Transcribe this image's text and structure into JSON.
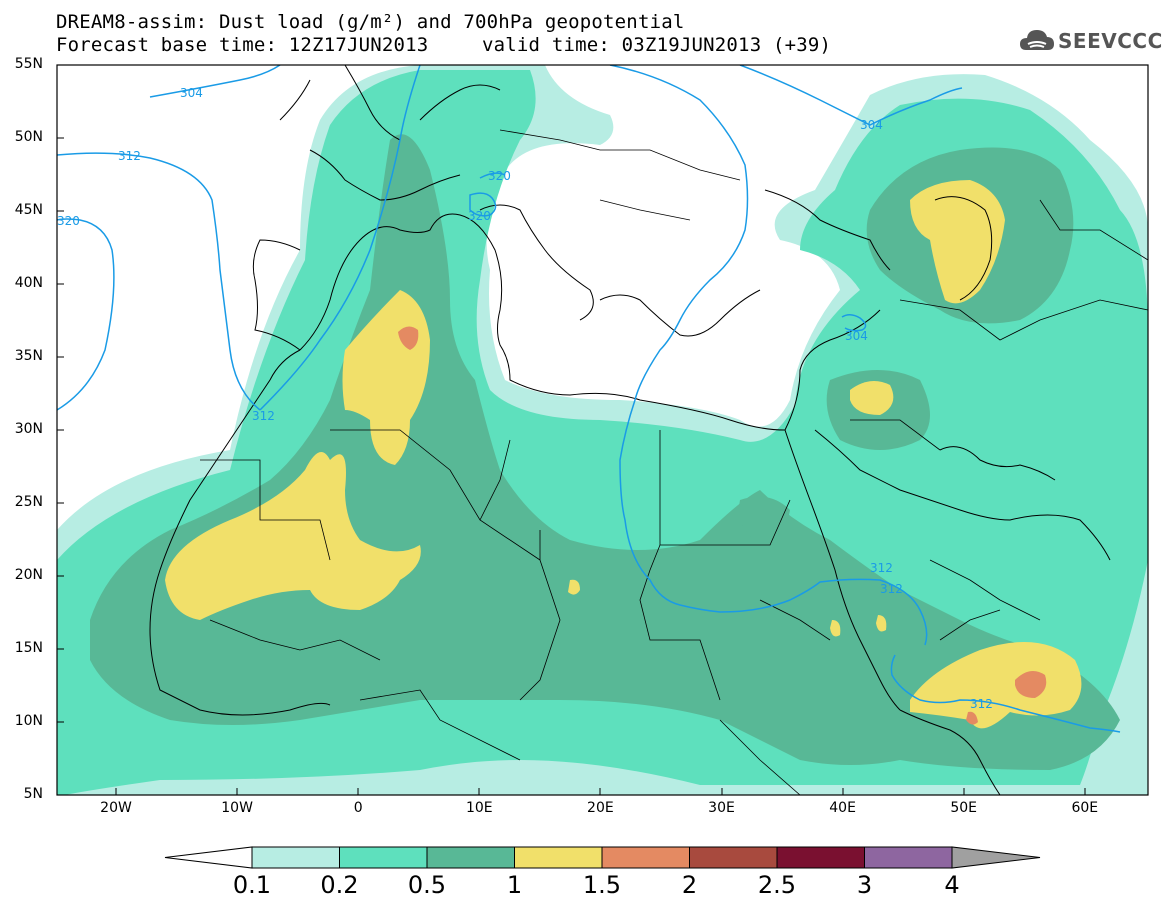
{
  "header": {
    "line1": "DREAM8-assim: Dust load (g/m²) and 700hPa geopotential",
    "line2": "Forecast base time: 12Z17JUN2013",
    "line3": "valid time: 03Z19JUN2013 (+39)"
  },
  "logo": {
    "text": "SEEVCCC",
    "icon": "cloud-icon"
  },
  "map": {
    "lat_labels": [
      "55N",
      "50N",
      "45N",
      "40N",
      "35N",
      "30N",
      "25N",
      "20N",
      "15N",
      "10N",
      "5N"
    ],
    "lon_labels": [
      "20W",
      "10W",
      "0",
      "10E",
      "20E",
      "30E",
      "40E",
      "50E",
      "60E"
    ],
    "contour_labels": {
      "c304_west": "304",
      "c304_east": "304",
      "c304_levant": "304",
      "c312_west1": "312",
      "c312_west2": "312",
      "c312_arabia1": "312",
      "c312_arabia2": "312",
      "c312_somalia": "312",
      "c320_west": "320",
      "c320_alps1": "320",
      "c320_alps2": "320"
    }
  },
  "colorbar": {
    "labels": [
      "0.1",
      "0.2",
      "0.5",
      "1",
      "1.5",
      "2",
      "2.5",
      "3",
      "4"
    ],
    "colors": [
      "#ffffff",
      "#b7ede3",
      "#5ee0bd",
      "#58b896",
      "#f1e06a",
      "#e48a62",
      "#a84a3e",
      "#7a1030",
      "#8e66a0",
      "#a0a0a0"
    ]
  }
}
